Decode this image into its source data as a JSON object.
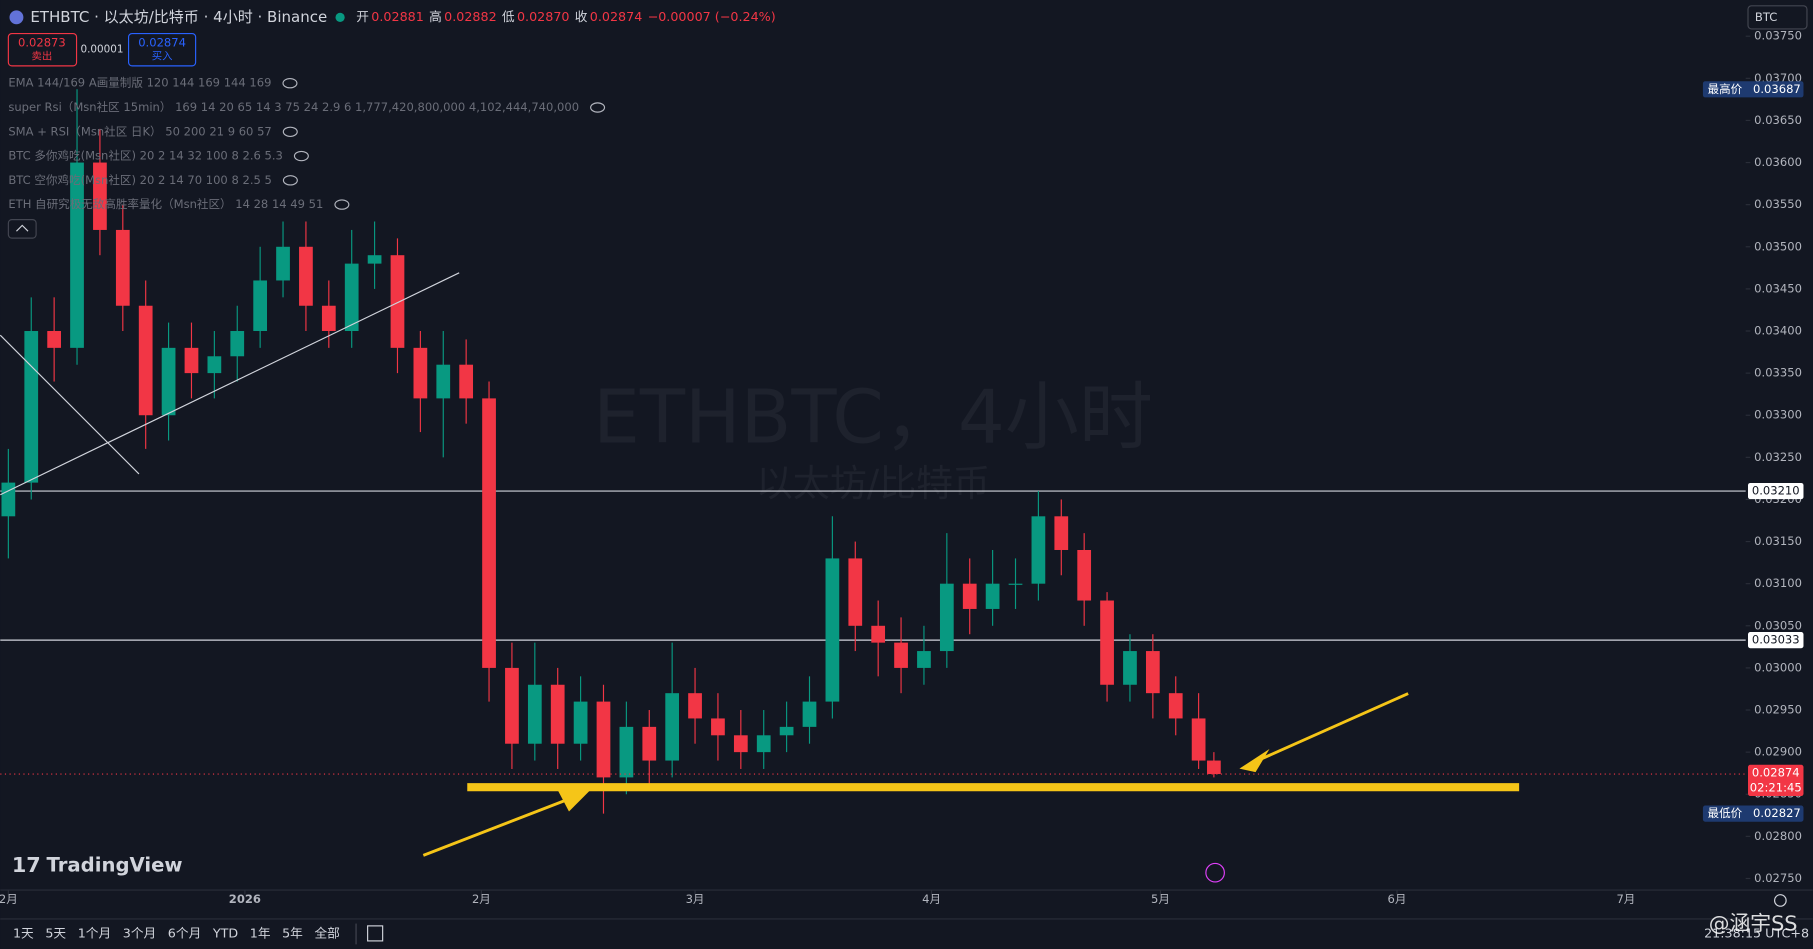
{
  "chart_data": {
    "type": "candlestick",
    "x": [
      0,
      3,
      6,
      9,
      12,
      15,
      18,
      21,
      24,
      27,
      30,
      33,
      36,
      39,
      42,
      45,
      48,
      51,
      54,
      57,
      60,
      63,
      66,
      69,
      72,
      75,
      78,
      81,
      84,
      87,
      90,
      93,
      96,
      99,
      102,
      105,
      108,
      111,
      114,
      117,
      120,
      123,
      126,
      129,
      132,
      135,
      138,
      141,
      144,
      147,
      150,
      153,
      156,
      158
    ],
    "open": [
      0.0318,
      0.0322,
      0.034,
      0.0338,
      0.036,
      0.0352,
      0.0343,
      0.033,
      0.0338,
      0.0335,
      0.0337,
      0.034,
      0.0346,
      0.035,
      0.0343,
      0.034,
      0.0348,
      0.0349,
      0.0338,
      0.0332,
      0.0336,
      0.0332,
      0.03,
      0.0291,
      0.0298,
      0.0291,
      0.0296,
      0.0287,
      0.0293,
      0.0289,
      0.0297,
      0.0294,
      0.0292,
      0.029,
      0.0292,
      0.0293,
      0.0296,
      0.0313,
      0.0305,
      0.0303,
      0.03,
      0.0302,
      0.031,
      0.0307,
      0.031,
      0.031,
      0.0318,
      0.0314,
      0.0308,
      0.0298,
      0.0302,
      0.0297,
      0.0294,
      0.0289
    ],
    "high": [
      0.0326,
      0.0344,
      0.0344,
      0.03687,
      0.0364,
      0.0355,
      0.0346,
      0.0341,
      0.0341,
      0.034,
      0.0343,
      0.035,
      0.0353,
      0.0353,
      0.0346,
      0.0352,
      0.0353,
      0.0351,
      0.034,
      0.034,
      0.0339,
      0.0334,
      0.0303,
      0.0303,
      0.03,
      0.0299,
      0.0298,
      0.0296,
      0.0295,
      0.0303,
      0.03,
      0.0297,
      0.0295,
      0.0295,
      0.0296,
      0.0299,
      0.0318,
      0.0315,
      0.0308,
      0.0306,
      0.0305,
      0.0316,
      0.0313,
      0.0314,
      0.0313,
      0.0321,
      0.032,
      0.0316,
      0.0309,
      0.0304,
      0.0304,
      0.0299,
      0.0297,
      0.029
    ],
    "low": [
      0.0313,
      0.032,
      0.0334,
      0.0336,
      0.0349,
      0.034,
      0.0326,
      0.0327,
      0.0332,
      0.0332,
      0.0334,
      0.0338,
      0.0344,
      0.034,
      0.0338,
      0.0338,
      0.0345,
      0.0335,
      0.0328,
      0.0325,
      0.0329,
      0.0296,
      0.0288,
      0.0289,
      0.0288,
      0.0289,
      0.02827,
      0.0285,
      0.0286,
      0.0287,
      0.0291,
      0.0289,
      0.0288,
      0.0288,
      0.029,
      0.0291,
      0.0294,
      0.0302,
      0.0299,
      0.0297,
      0.0298,
      0.03,
      0.0304,
      0.0305,
      0.0307,
      0.0308,
      0.0311,
      0.0305,
      0.0296,
      0.0296,
      0.0294,
      0.0292,
      0.0288,
      0.0287
    ],
    "close": [
      0.0322,
      0.034,
      0.0338,
      0.036,
      0.0352,
      0.0343,
      0.033,
      0.0338,
      0.0335,
      0.0337,
      0.034,
      0.0346,
      0.035,
      0.0343,
      0.034,
      0.0348,
      0.0349,
      0.0338,
      0.0332,
      0.0336,
      0.0332,
      0.03,
      0.0291,
      0.0298,
      0.0291,
      0.0296,
      0.0287,
      0.0293,
      0.0289,
      0.0297,
      0.0294,
      0.0292,
      0.029,
      0.0292,
      0.0293,
      0.0296,
      0.0313,
      0.0305,
      0.0303,
      0.03,
      0.0302,
      0.031,
      0.0307,
      0.031,
      0.031,
      0.0318,
      0.0314,
      0.0308,
      0.0298,
      0.0302,
      0.0297,
      0.0294,
      0.0289,
      0.02874
    ],
    "up_color": "#089981",
    "down_color": "#f23645",
    "xlim": [
      -1.06,
      227.7
    ],
    "xticks": [
      {
        "value": 0,
        "label": "2月"
      },
      {
        "value": 31,
        "label": "2026"
      },
      {
        "value": 62,
        "label": "2月"
      },
      {
        "value": 90,
        "label": "3月"
      },
      {
        "value": 121,
        "label": "4月"
      },
      {
        "value": 151,
        "label": "5月"
      },
      {
        "value": 182,
        "label": "6月"
      },
      {
        "value": 212,
        "label": "7月"
      }
    ],
    "ylim": [
      0.02739,
      0.03793
    ],
    "yticks": [
      {
        "value": 0.0275,
        "label": "0.02750"
      },
      {
        "value": 0.028,
        "label": "0.02800"
      },
      {
        "value": 0.0285,
        "label": "0.02850"
      },
      {
        "value": 0.029,
        "label": "0.02900"
      },
      {
        "value": 0.0295,
        "label": "0.02950"
      },
      {
        "value": 0.03,
        "label": "0.03000"
      },
      {
        "value": 0.0305,
        "label": "0.03050"
      },
      {
        "value": 0.031,
        "label": "0.03100"
      },
      {
        "value": 0.0315,
        "label": "0.03150"
      },
      {
        "value": 0.032,
        "label": "0.03200"
      },
      {
        "value": 0.0325,
        "label": "0.03250"
      },
      {
        "value": 0.033,
        "label": "0.03300"
      },
      {
        "value": 0.0335,
        "label": "0.03350"
      },
      {
        "value": 0.034,
        "label": "0.03400"
      },
      {
        "value": 0.0345,
        "label": "0.03450"
      },
      {
        "value": 0.035,
        "label": "0.03500"
      },
      {
        "value": 0.0355,
        "label": "0.03550"
      },
      {
        "value": 0.036,
        "label": "0.03600"
      },
      {
        "value": 0.0365,
        "label": "0.03650"
      },
      {
        "value": 0.037,
        "label": "0.03700"
      },
      {
        "value": 0.0375,
        "label": "0.03750"
      }
    ],
    "hlines": [
      {
        "value": 0.0321,
        "label": "0.03210"
      },
      {
        "value": 0.03033,
        "label": "0.03033"
      }
    ],
    "high_marker": {
      "label": "最高价",
      "value": 0.03687
    },
    "low_marker": {
      "label": "最低价",
      "value": 0.02827
    },
    "last": {
      "value": 0.02874,
      "countdown": "02:21:45"
    },
    "watermark": [
      "ETHBTC，4小时",
      "以太坊/比特币"
    ]
  },
  "header": {
    "symbol": "ETHBTC · 以太坊/比特币 · 4小时 · Binance",
    "ohlc": [
      {
        "label": "开",
        "value": 0.02881
      },
      {
        "label": "高",
        "value": 0.02882
      },
      {
        "label": "低",
        "value": 0.0287
      },
      {
        "label": "收",
        "value": 0.02874
      }
    ],
    "ohlc_labels": [
      "0.02881",
      "0.02882",
      "0.02870",
      "0.02874"
    ],
    "change": "−0.00007 (−0.24%)",
    "currency": "BTC"
  },
  "trade": {
    "sell_price": 0.02873,
    "sell": "卖出",
    "spread": 1e-05,
    "buy_price": 0.02874,
    "buy": "买入"
  },
  "indicators": [
    "EMA 144/169 A画量制版 120 144 169 144 169",
    "super Rsi（Msn社区 15min） 169 14 20 65 14 3 75 24 2.9 6 1,777,420,800,000 4,102,444,740,000",
    "SMA + RSI（Msn社区 日K） 50 200 21 9 60 57",
    "BTC 多你鸡吃(Msn社区) 20 2 14 32 100 8 2.6 5.3",
    "BTC 空你鸡吃(Msn社区) 20 2 14 70 100 8 2.5 5",
    "ETH 自研究极无敌高胜率量化（Msn社区） 14 28 14 49 51"
  ],
  "footer": {
    "logo": "TradingView",
    "ranges": [
      "1天",
      "5天",
      "1个月",
      "3个月",
      "6个月",
      "YTD",
      "1年",
      "5年",
      "全部"
    ],
    "time": "21:38:15 UTC+8",
    "credit": "@涵宇SS"
  }
}
